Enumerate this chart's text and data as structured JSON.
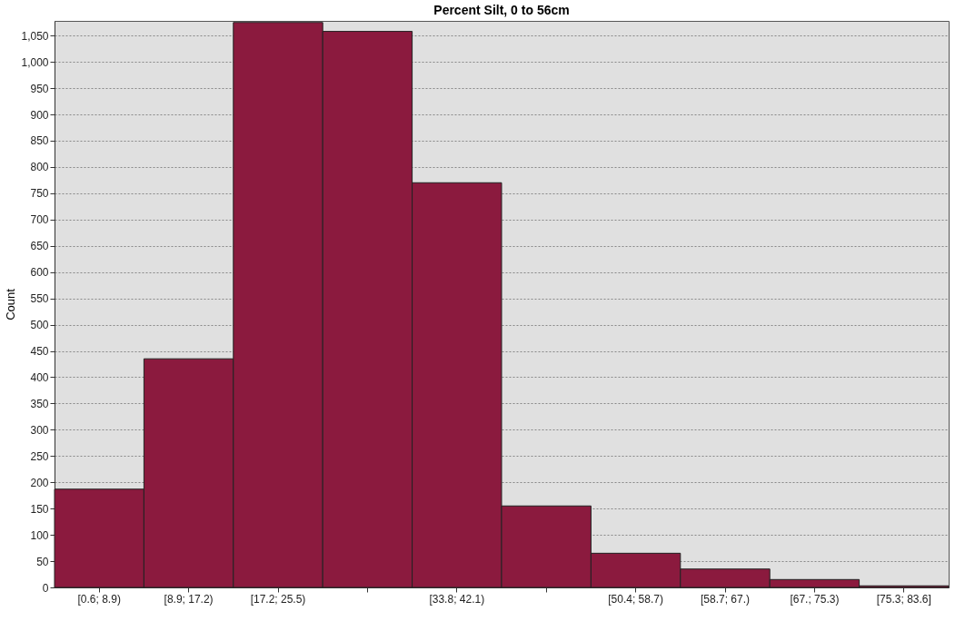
{
  "chart_data": {
    "type": "bar",
    "title": "Percent Silt, 0 to 56cm",
    "ylabel": "Count",
    "categories": [
      "[0.6; 8.9)",
      "[8.9; 17.2)",
      "[17.2; 25.5)",
      null,
      "[33.8; 42.1)",
      null,
      "[50.4; 58.7)",
      "[58.7; 67.)",
      "[67.; 75.3)",
      "[75.3; 83.6]"
    ],
    "values": [
      187,
      435,
      1075,
      1058,
      770,
      155,
      65,
      35,
      15,
      3
    ],
    "color": "#8b1a3e",
    "ylim": [
      0,
      1078
    ],
    "yticks": [
      0,
      50,
      100,
      150,
      200,
      250,
      300,
      350,
      400,
      450,
      500,
      550,
      600,
      650,
      700,
      750,
      800,
      850,
      900,
      950,
      {
        "value": 1000,
        "label": "1,000"
      },
      {
        "value": 1050,
        "label": "1,050"
      }
    ],
    "grid": "y"
  }
}
